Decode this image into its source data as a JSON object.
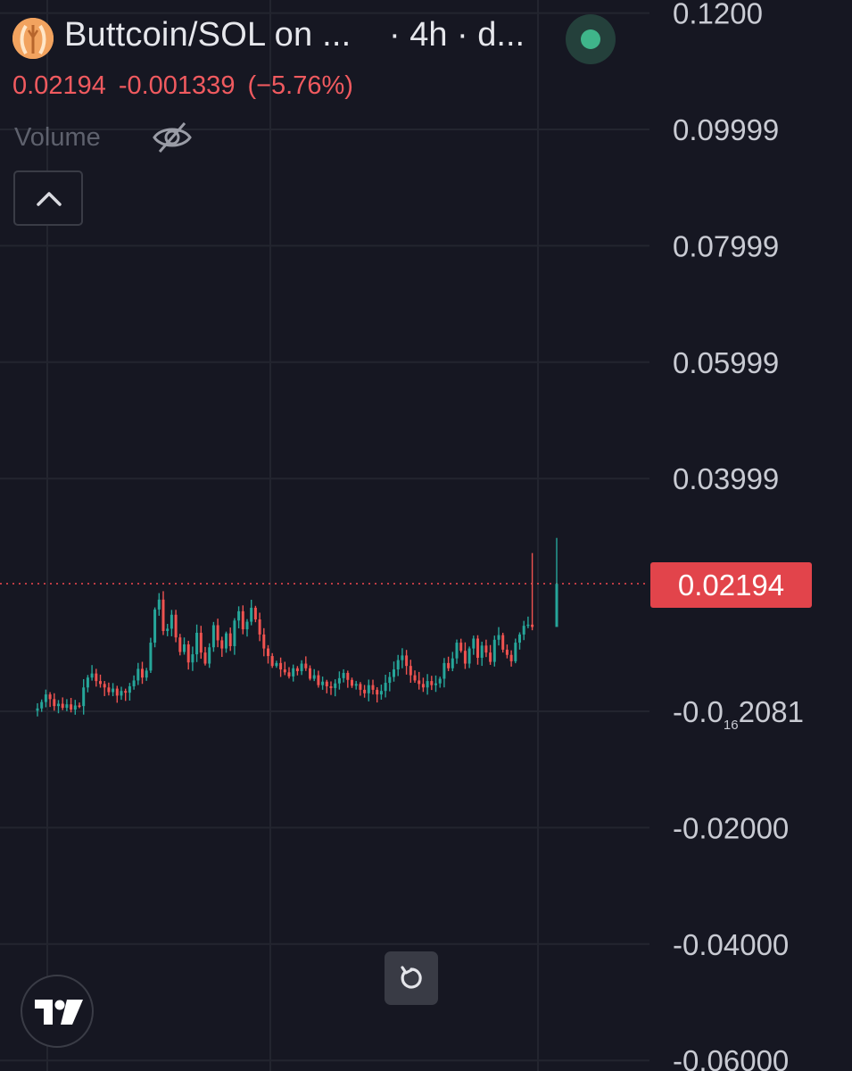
{
  "header": {
    "symbol_title": "Buttcoin/SOL on ...",
    "interval_text": "· 4h · d...",
    "logo_icon": "buttcoin-logo-icon",
    "status_icon": "market-open-dot-icon",
    "status_color": "#3fb58a"
  },
  "ohlc": {
    "last": "0.02194",
    "change": "-0.001339",
    "change_pct": "(−5.76%)",
    "color": "#f05a5f"
  },
  "volume": {
    "label": "Volume",
    "visibility_icon": "eye-off-icon"
  },
  "controls": {
    "collapse_icon": "chevron-up-icon",
    "reset_icon": "reset-rotate-icon",
    "brand_icon": "tradingview-logo-icon"
  },
  "price_tag": {
    "value": "0.02194",
    "color": "#e2444b"
  },
  "colors": {
    "background": "#161722",
    "grid": "#23252f",
    "up": "#26a69a",
    "down": "#ef5350",
    "last_price_line": "#e2444b"
  },
  "chart_data": {
    "type": "candlestick",
    "y_axis": {
      "ticks": [
        {
          "value": 0.12,
          "label": "0.1200"
        },
        {
          "value": 0.1,
          "label": "0.09999"
        },
        {
          "value": 0.08,
          "label": "0.07999"
        },
        {
          "value": 0.06,
          "label": "0.05999"
        },
        {
          "value": 0.04,
          "label": "0.03999"
        },
        {
          "value": 0.0,
          "label_main": "-0.0",
          "label_sub": "16",
          "label_end": "2081"
        },
        {
          "value": -0.02,
          "label": "-0.02000"
        },
        {
          "value": -0.04,
          "label": "-0.04000"
        },
        {
          "value": -0.06,
          "label": "-0.06000"
        }
      ],
      "range": [
        -0.0615,
        0.1235
      ]
    },
    "last_price": 0.02194,
    "closes": [
      0.0005,
      0.0016,
      0.0029,
      0.0021,
      0.0009,
      0.0013,
      0.0006,
      0.0012,
      0.0003,
      0.001,
      0.0009,
      0.0041,
      0.0058,
      0.0065,
      0.0052,
      0.0047,
      0.0041,
      0.0033,
      0.0039,
      0.0027,
      0.0035,
      0.0032,
      0.0043,
      0.0053,
      0.0073,
      0.0058,
      0.007,
      0.0118,
      0.0175,
      0.0192,
      0.0138,
      0.0142,
      0.0166,
      0.0127,
      0.0102,
      0.0115,
      0.0084,
      0.0098,
      0.0135,
      0.0101,
      0.0082,
      0.011,
      0.0148,
      0.0122,
      0.0108,
      0.0134,
      0.0112,
      0.0156,
      0.0172,
      0.0141,
      0.0154,
      0.0178,
      0.0158,
      0.0132,
      0.0108,
      0.0095,
      0.0078,
      0.0083,
      0.0072,
      0.0067,
      0.006,
      0.0074,
      0.0069,
      0.0082,
      0.0074,
      0.0056,
      0.0062,
      0.0045,
      0.0051,
      0.0043,
      0.004,
      0.0048,
      0.0057,
      0.0066,
      0.0054,
      0.0044,
      0.0047,
      0.0037,
      0.0031,
      0.0045,
      0.0037,
      0.0029,
      0.0035,
      0.0049,
      0.0059,
      0.0072,
      0.0088,
      0.0096,
      0.0078,
      0.0062,
      0.0053,
      0.0047,
      0.0041,
      0.0052,
      0.0045,
      0.0048,
      0.0056,
      0.0083,
      0.0074,
      0.0091,
      0.0118,
      0.0104,
      0.0082,
      0.0108,
      0.0125,
      0.0092,
      0.0113,
      0.0101,
      0.0085,
      0.0123,
      0.0131,
      0.0106,
      0.0097,
      0.0086,
      0.0118,
      0.0132,
      0.0147,
      0.0149,
      0.0145,
      0.0219
    ]
  }
}
